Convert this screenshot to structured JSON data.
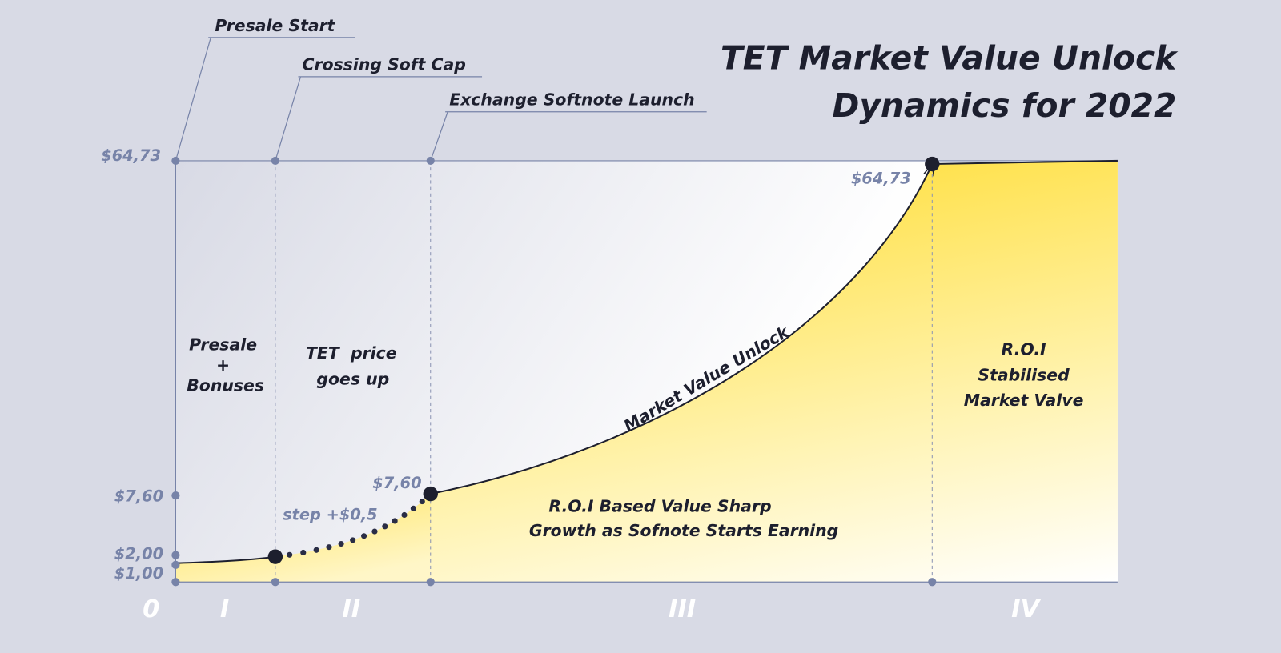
{
  "title": [
    "TET Market Value Unlock",
    "Dynamics for 2022"
  ],
  "milestones": [
    "Presale Start",
    "Crossing Soft Cap",
    "Exchange Softnote Launch"
  ],
  "y_axis_labels": [
    "$64,73",
    "$7,60",
    "$2,00",
    "$1,00"
  ],
  "phases": [
    "0",
    "I",
    "II",
    "III",
    "IV"
  ],
  "regions": {
    "presale": [
      "Presale",
      "+",
      "Bonuses"
    ],
    "price_up": [
      "TET  price",
      "goes up"
    ],
    "roi_stable": [
      "R.O.I",
      "Stabilised",
      "Market Valve"
    ],
    "roi_growth": [
      "R.O.I Based Value Sharp",
      "Growth as Sofnote Starts Earning"
    ]
  },
  "curve_labels": {
    "step": "step +$0,5",
    "launch_price": "$7,60",
    "peak_price": "$64,73",
    "curve": "Market Value Unlock"
  }
}
